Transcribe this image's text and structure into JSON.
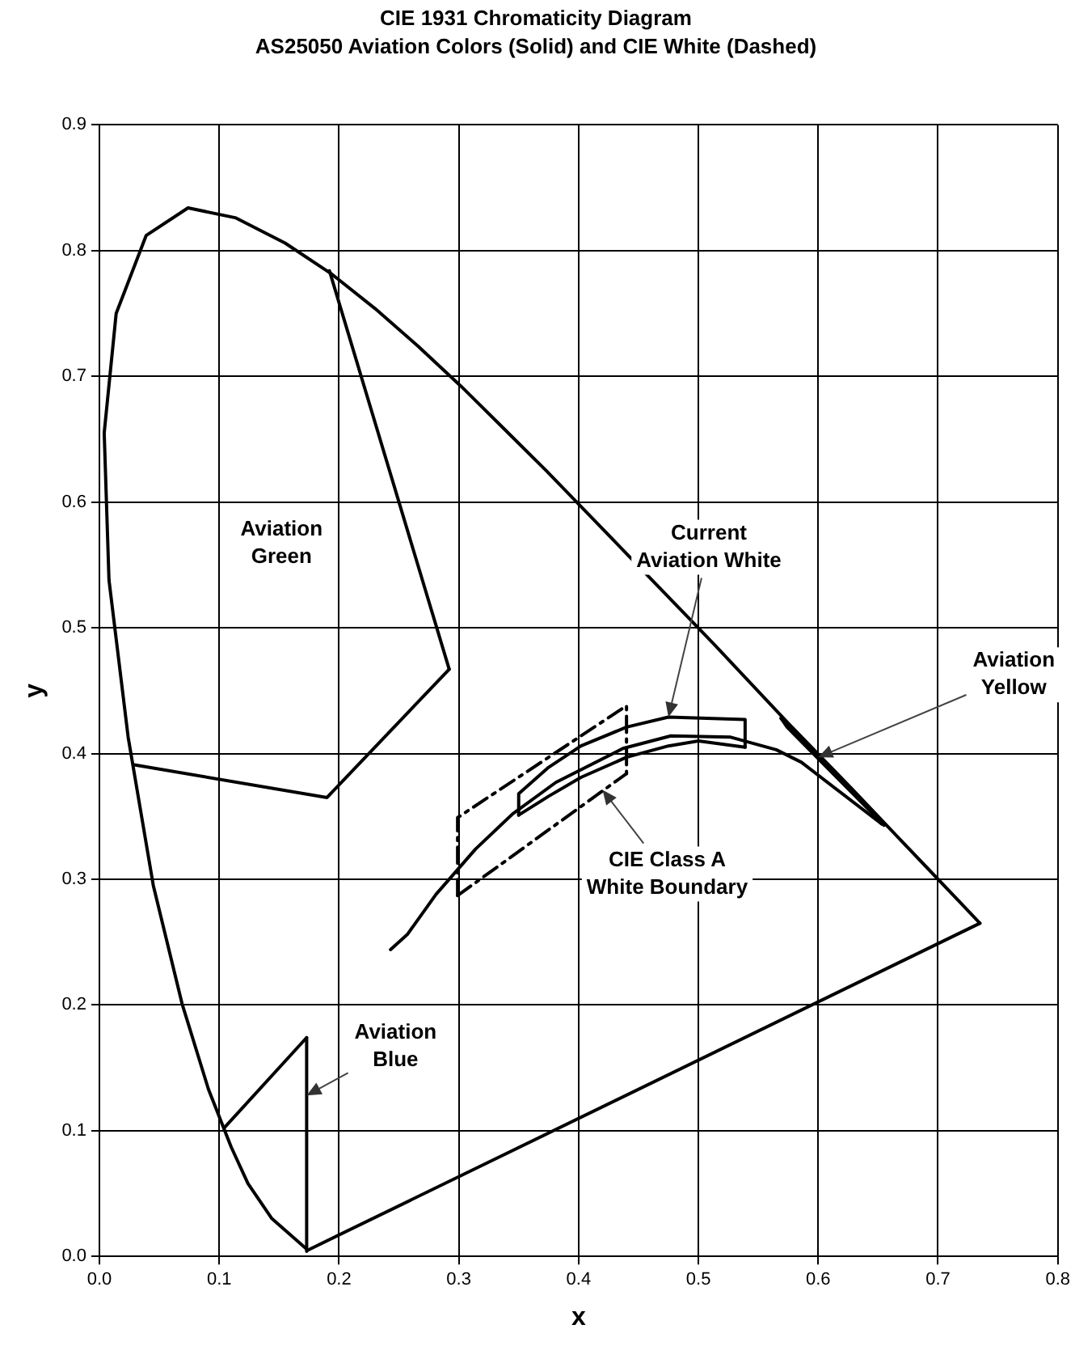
{
  "chart_data": {
    "type": "line",
    "title": "CIE 1931 Chromaticity Diagram",
    "subtitle": "AS25050 Aviation Colors (Solid) and CIE White (Dashed)",
    "xlabel": "x",
    "ylabel": "y",
    "xlim": [
      0,
      0.8
    ],
    "ylim": [
      0,
      0.9
    ],
    "xticks": [
      {
        "value": 0,
        "label": "0.0"
      },
      0.1,
      0.2,
      0.3,
      0.4,
      0.5,
      0.6,
      0.7,
      0.8
    ],
    "yticks": [
      {
        "value": 0,
        "label": "0.0"
      },
      0.1,
      0.2,
      0.3,
      0.4,
      0.5,
      0.6,
      0.7,
      0.8,
      0.9
    ],
    "grid": true,
    "legend": false,
    "marker": "none",
    "line_style": "solid",
    "series": [
      {
        "color": "#000000",
        "x": [
          0.174,
          0.144,
          0.124,
          0.11,
          0.091,
          0.069,
          0.045,
          0.024,
          0.008,
          0.004,
          0.014,
          0.039,
          0.074,
          0.114,
          0.155,
          0.193,
          0.23,
          0.266,
          0.302,
          0.337,
          0.373,
          0.444,
          0.513,
          0.575,
          0.627,
          0.666,
          0.692,
          0.719,
          0.735
        ],
        "values": [
          0.005,
          0.03,
          0.058,
          0.087,
          0.133,
          0.201,
          0.295,
          0.413,
          0.538,
          0.655,
          0.75,
          0.812,
          0.834,
          0.826,
          0.806,
          0.782,
          0.754,
          0.724,
          0.692,
          0.659,
          0.625,
          0.555,
          0.487,
          0.424,
          0.373,
          0.334,
          0.308,
          0.281,
          0.265
        ]
      },
      {
        "color": "#000000",
        "x": [
          0.174,
          0.735
        ],
        "values": [
          0.005,
          0.265
        ]
      },
      {
        "color": "#000000",
        "x": [
          0.243,
          0.257,
          0.281,
          0.314,
          0.345,
          0.381,
          0.437,
          0.477,
          0.527,
          0.565,
          0.586,
          0.653
        ],
        "values": [
          0.244,
          0.256,
          0.288,
          0.324,
          0.352,
          0.377,
          0.404,
          0.414,
          0.413,
          0.403,
          0.393,
          0.344
        ]
      },
      {
        "color": "#000000",
        "x": [
          0.029,
          0.19,
          0.292
        ],
        "values": [
          0.391,
          0.365,
          0.467
        ]
      },
      {
        "color": "#000000",
        "x": [
          0.192,
          0.292
        ],
        "values": [
          0.784,
          0.467
        ]
      },
      {
        "color": "#000000",
        "x": [
          0.104,
          0.173
        ],
        "values": [
          0.102,
          0.174
        ]
      },
      {
        "color": "#000000",
        "x": [
          0.173,
          0.173
        ],
        "values": [
          0.004,
          0.174
        ]
      },
      {
        "color": "#000000",
        "x": [
          0.569,
          0.655
        ],
        "values": [
          0.428,
          0.343
        ]
      },
      {
        "color": "#000000",
        "x": [
          0.569,
          0.574,
          0.655
        ],
        "values": [
          0.428,
          0.421,
          0.343
        ]
      },
      {
        "color": "#000000",
        "x": [
          0.35,
          0.35,
          0.375,
          0.402,
          0.44,
          0.475,
          0.539,
          0.539
        ],
        "values": [
          0.351,
          0.368,
          0.389,
          0.406,
          0.421,
          0.429,
          0.427,
          0.405
        ]
      },
      {
        "color": "#000000",
        "x": [
          0.35,
          0.375,
          0.402,
          0.44,
          0.475,
          0.5,
          0.539
        ],
        "values": [
          0.351,
          0.366,
          0.381,
          0.397,
          0.406,
          0.41,
          0.405
        ]
      },
      {
        "color": "#000000",
        "line_style": "dashed",
        "x": [
          0.299,
          0.299,
          0.44,
          0.44
        ],
        "values": [
          0.287,
          0.349,
          0.438,
          0.384
        ]
      },
      {
        "color": "#000000",
        "line_style": "dashed",
        "x": [
          0.299,
          0.44
        ],
        "values": [
          0.287,
          0.384
        ]
      }
    ],
    "annotations": [
      "Aviation\nGreen",
      {
        "text": "Aviation\nBlue",
        "x": 0.173,
        "y": 0.128
      },
      {
        "text": "Current\nAviation White",
        "x": 0.475,
        "y": 0.429
      },
      {
        "text": "Aviation\nYellow",
        "x": 0.6,
        "y": 0.397
      },
      {
        "text": "CIE Class A\nWhite Boundary",
        "x": 0.42,
        "y": 0.371
      }
    ]
  }
}
